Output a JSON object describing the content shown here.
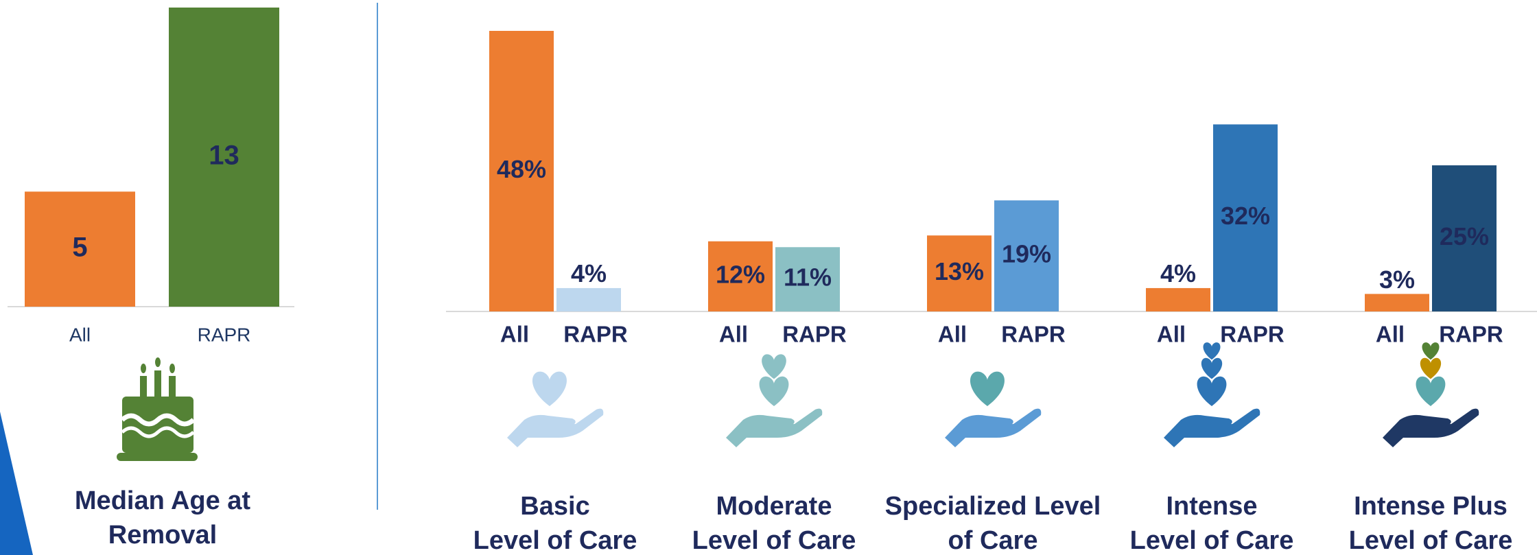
{
  "chart_data": [
    {
      "type": "bar",
      "title": "Median Age at Removal",
      "categories": [
        "All",
        "RAPR"
      ],
      "values": [
        5,
        13
      ],
      "colors": [
        "#ED7D31",
        "#548235"
      ]
    },
    {
      "type": "grouped-bar",
      "groups": [
        {
          "title": "Basic\nLevel of Care",
          "categories": [
            "All",
            "RAPR"
          ],
          "values": [
            48,
            4
          ],
          "value_labels": [
            "48%",
            "4%"
          ],
          "colors": [
            "#ED7D31",
            "#BDD7EE"
          ]
        },
        {
          "title": "Moderate\nLevel of Care",
          "categories": [
            "All",
            "RAPR"
          ],
          "values": [
            12,
            11
          ],
          "value_labels": [
            "12%",
            "11%"
          ],
          "colors": [
            "#ED7D31",
            "#8BC0C4"
          ]
        },
        {
          "title": "Specialized Level\nof Care",
          "categories": [
            "All",
            "RAPR"
          ],
          "values": [
            13,
            19
          ],
          "value_labels": [
            "13%",
            "19%"
          ],
          "colors": [
            "#ED7D31",
            "#5B9BD5"
          ]
        },
        {
          "title": "Intense\nLevel of Care",
          "categories": [
            "All",
            "RAPR"
          ],
          "values": [
            4,
            32
          ],
          "value_labels": [
            "4%",
            "32%"
          ],
          "colors": [
            "#ED7D31",
            "#2E75B6"
          ]
        },
        {
          "title": "Intense Plus\nLevel of Care",
          "categories": [
            "All",
            "RAPR"
          ],
          "values": [
            3,
            25
          ],
          "value_labels": [
            "3%",
            "25%"
          ],
          "colors": [
            "#ED7D31",
            "#1F4E79"
          ]
        }
      ]
    }
  ]
}
